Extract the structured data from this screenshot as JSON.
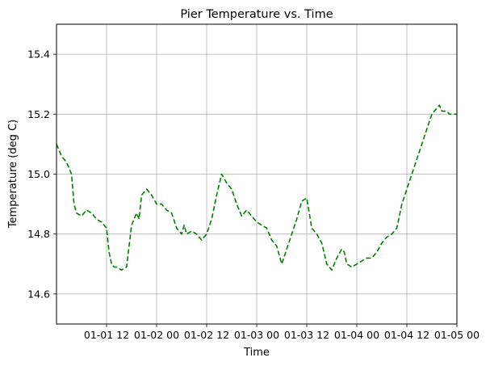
{
  "chart_data": {
    "type": "line",
    "title": "Pier Temperature vs. Time",
    "xlabel": "Time",
    "ylabel": "Temperature (deg C)",
    "xlim": [
      0,
      8
    ],
    "ylim": [
      14.5,
      15.5
    ],
    "x_ticks": [
      {
        "value": 1,
        "label": "01-01 12"
      },
      {
        "value": 2,
        "label": "01-02 00"
      },
      {
        "value": 3,
        "label": "01-02 12"
      },
      {
        "value": 4,
        "label": "01-03 00"
      },
      {
        "value": 5,
        "label": "01-03 12"
      },
      {
        "value": 6,
        "label": "01-04 00"
      },
      {
        "value": 7,
        "label": "01-04 12"
      },
      {
        "value": 8,
        "label": "01-05 00"
      }
    ],
    "y_ticks": [
      {
        "value": 14.6,
        "label": "14.6"
      },
      {
        "value": 14.8,
        "label": "14.8"
      },
      {
        "value": 15.0,
        "label": "15.0"
      },
      {
        "value": 15.2,
        "label": "15.2"
      },
      {
        "value": 15.4,
        "label": "15.4"
      }
    ],
    "grid": true,
    "series": [
      {
        "color": "#008000",
        "style": "dashed",
        "x": [
          0,
          0.05,
          0.1,
          0.2,
          0.3,
          0.35,
          0.4,
          0.5,
          0.6,
          0.7,
          0.8,
          0.9,
          1.0,
          1.05,
          1.1,
          1.15,
          1.2,
          1.3,
          1.4,
          1.5,
          1.6,
          1.65,
          1.7,
          1.8,
          1.9,
          2.0,
          2.1,
          2.2,
          2.3,
          2.4,
          2.5,
          2.55,
          2.6,
          2.7,
          2.8,
          2.9,
          2.95,
          3.0,
          3.1,
          3.2,
          3.3,
          3.4,
          3.5,
          3.6,
          3.7,
          3.8,
          3.9,
          4.0,
          4.1,
          4.2,
          4.25,
          4.3,
          4.4,
          4.5,
          4.6,
          4.7,
          4.8,
          4.9,
          5.0,
          5.1,
          5.2,
          5.3,
          5.4,
          5.5,
          5.6,
          5.7,
          5.75,
          5.8,
          5.9,
          6.0,
          6.1,
          6.2,
          6.3,
          6.4,
          6.5,
          6.6,
          6.7,
          6.8,
          6.9,
          7.0,
          7.1,
          7.2,
          7.3,
          7.4,
          7.5,
          7.6,
          7.65,
          7.7,
          7.8,
          7.85,
          7.9,
          7.95,
          8.0
        ],
        "y": [
          15.1,
          15.08,
          15.06,
          15.04,
          15.0,
          14.9,
          14.87,
          14.86,
          14.88,
          14.87,
          14.85,
          14.84,
          14.82,
          14.74,
          14.7,
          14.69,
          14.69,
          14.68,
          14.69,
          14.83,
          14.87,
          14.85,
          14.93,
          14.95,
          14.93,
          14.9,
          14.9,
          14.88,
          14.87,
          14.82,
          14.8,
          14.83,
          14.8,
          14.81,
          14.8,
          14.78,
          14.79,
          14.8,
          14.85,
          14.93,
          15.0,
          14.97,
          14.95,
          14.9,
          14.86,
          14.88,
          14.86,
          14.84,
          14.83,
          14.82,
          14.8,
          14.78,
          14.76,
          14.7,
          14.75,
          14.8,
          14.85,
          14.91,
          14.92,
          14.82,
          14.8,
          14.77,
          14.7,
          14.68,
          14.72,
          14.75,
          14.74,
          14.7,
          14.69,
          14.7,
          14.71,
          14.72,
          14.72,
          14.74,
          14.77,
          14.79,
          14.8,
          14.82,
          14.9,
          14.95,
          15.0,
          15.05,
          15.1,
          15.15,
          15.2,
          15.22,
          15.23,
          15.21,
          15.21,
          15.2,
          15.2,
          15.2,
          15.2
        ]
      }
    ]
  }
}
